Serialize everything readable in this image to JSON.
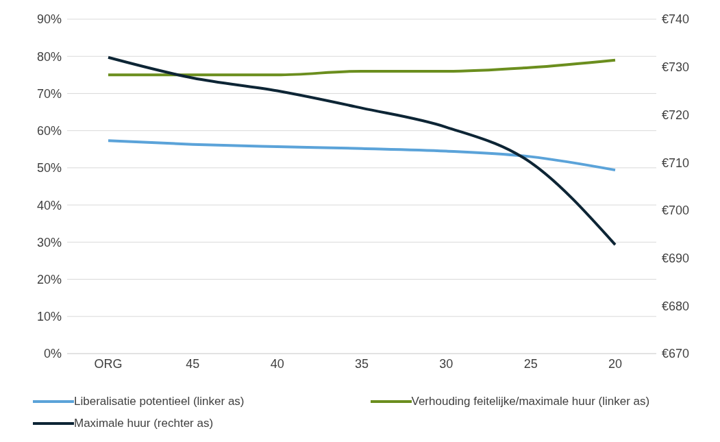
{
  "chart_data": {
    "type": "line",
    "categories": [
      "ORG",
      "45",
      "40",
      "35",
      "30",
      "25",
      "20"
    ],
    "series": [
      {
        "name": "Liberalisatie potentieel (linker as)",
        "color": "#5ba3d9",
        "values": [
          57.3,
          56.3,
          55.7,
          55.2,
          54.5,
          53,
          49.4
        ]
      },
      {
        "name": "Verhouding feitelijke/maximale huur (linker as)",
        "color": "#6b8e1e",
        "values": [
          75,
          75,
          75,
          76,
          76,
          77,
          79
        ]
      },
      {
        "name": "Maximale huur (rechter as)",
        "color": "#0d2535",
        "axis": "y2",
        "values": [
          732,
          727.7,
          725,
          721.4,
          717.4,
          710,
          692.8
        ]
      }
    ],
    "ylim": [
      0,
      90
    ],
    "yticks": [
      {
        "value": 0,
        "label": "0%"
      },
      {
        "value": 10,
        "label": "10%"
      },
      {
        "value": 20,
        "label": "20%"
      },
      {
        "value": 30,
        "label": "30%"
      },
      {
        "value": 40,
        "label": "40%"
      },
      {
        "value": 50,
        "label": "50%"
      },
      {
        "value": 60,
        "label": "60%"
      },
      {
        "value": 70,
        "label": "70%"
      },
      {
        "value": 80,
        "label": "80%"
      },
      {
        "value": 90,
        "label": "90%"
      }
    ],
    "y2lim": [
      670,
      740
    ],
    "y2ticks": [
      {
        "value": 670,
        "label": "€670"
      },
      {
        "value": 680,
        "label": "€680"
      },
      {
        "value": 690,
        "label": "€690"
      },
      {
        "value": 700,
        "label": "€700"
      },
      {
        "value": 710,
        "label": "€710"
      },
      {
        "value": 720,
        "label": "€720"
      },
      {
        "value": 730,
        "label": "€730"
      },
      {
        "value": 740,
        "label": "€740"
      }
    ],
    "grid": "y",
    "legend": "bottom",
    "marker": "none",
    "line_style": "solid"
  }
}
